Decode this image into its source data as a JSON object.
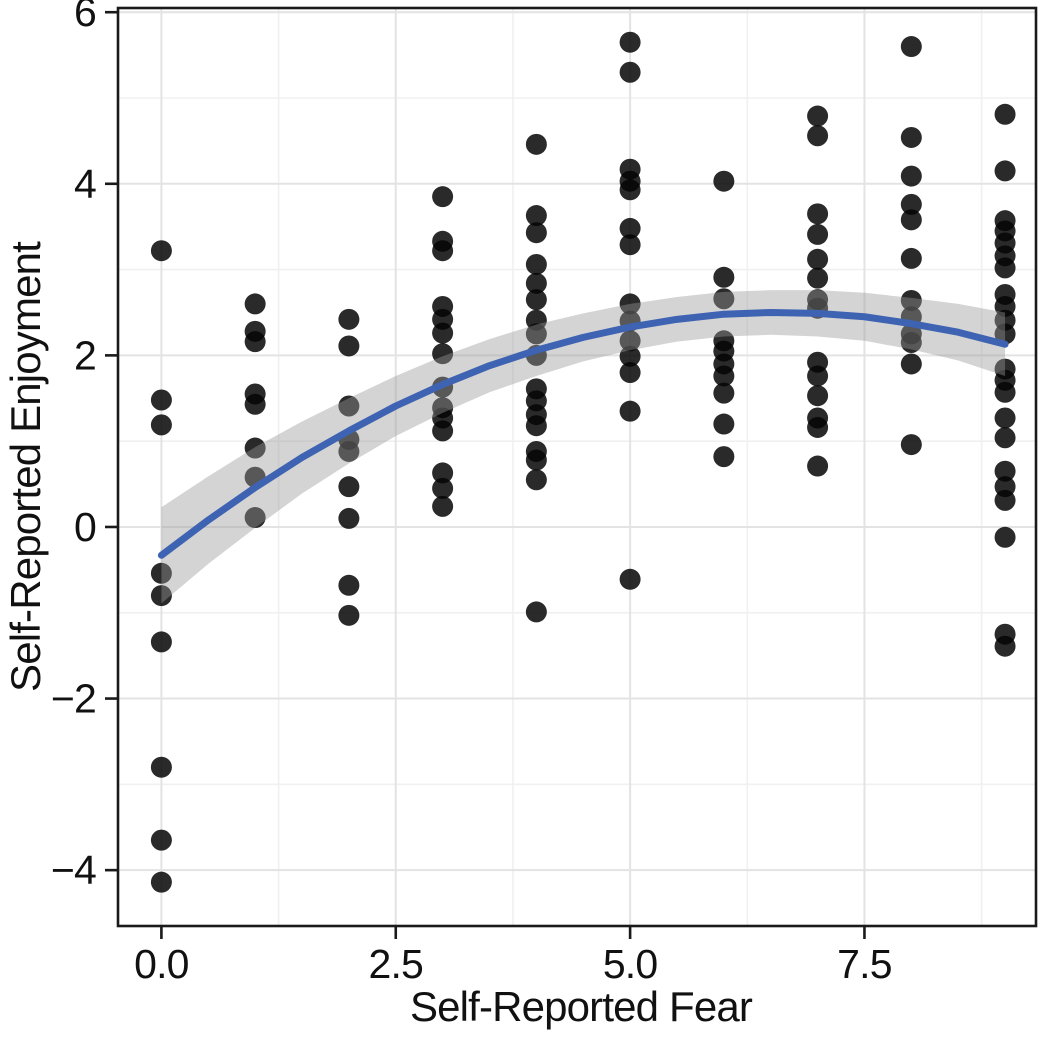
{
  "chart_data": {
    "type": "scatter",
    "title": "",
    "xlabel": "Self-Reported Fear",
    "ylabel": "Self-Reported Enjoyment",
    "legend": "none",
    "grid": "major and minor, light gray on white panel with black border",
    "x_domain": [
      -0.463,
      9.33
    ],
    "y_domain": [
      -4.651,
      6.049
    ],
    "x_ticks": {
      "values": [
        0,
        2.5,
        5,
        7.5
      ],
      "labels": [
        "0.0",
        "2.5",
        "5.0",
        "7.5"
      ]
    },
    "y_ticks": {
      "values": [
        6,
        4,
        2,
        0,
        -2,
        -4
      ],
      "labels": [
        "6",
        "4",
        "2",
        "0",
        "−2",
        "−4"
      ]
    },
    "x_minor_gridlines": [
      1.25,
      3.75,
      6.25,
      8.75
    ],
    "y_minor_gridlines": [
      5,
      3,
      1,
      -1,
      -3
    ],
    "points": [
      [
        0,
        3.22
      ],
      [
        0,
        1.48
      ],
      [
        0,
        1.19
      ],
      [
        0,
        -0.54
      ],
      [
        0,
        -0.8
      ],
      [
        0,
        -1.34
      ],
      [
        0,
        -2.8
      ],
      [
        0,
        -3.65
      ],
      [
        0,
        -4.14
      ],
      [
        1,
        2.6
      ],
      [
        1,
        2.28
      ],
      [
        1,
        2.16
      ],
      [
        1,
        1.55
      ],
      [
        1,
        1.43
      ],
      [
        1,
        0.92
      ],
      [
        1,
        0.58
      ],
      [
        1,
        0.11
      ],
      [
        2,
        2.42
      ],
      [
        2,
        2.11
      ],
      [
        2,
        1.41
      ],
      [
        2,
        1.02
      ],
      [
        2,
        0.88
      ],
      [
        2,
        0.47
      ],
      [
        2,
        0.1
      ],
      [
        2,
        -0.68
      ],
      [
        2,
        -1.03
      ],
      [
        3,
        3.85
      ],
      [
        3,
        3.33
      ],
      [
        3,
        3.22
      ],
      [
        3,
        2.57
      ],
      [
        3,
        2.42
      ],
      [
        3,
        2.26
      ],
      [
        3,
        2.02
      ],
      [
        3,
        1.63
      ],
      [
        3,
        1.39
      ],
      [
        3,
        1.27
      ],
      [
        3,
        1.12
      ],
      [
        3,
        0.63
      ],
      [
        3,
        0.45
      ],
      [
        3,
        0.24
      ],
      [
        4,
        4.46
      ],
      [
        4,
        3.63
      ],
      [
        4,
        3.43
      ],
      [
        4,
        3.06
      ],
      [
        4,
        2.84
      ],
      [
        4,
        2.65
      ],
      [
        4,
        2.41
      ],
      [
        4,
        2.25
      ],
      [
        4,
        2.0
      ],
      [
        4,
        1.61
      ],
      [
        4,
        1.47
      ],
      [
        4,
        1.31
      ],
      [
        4,
        1.18
      ],
      [
        4,
        0.88
      ],
      [
        4,
        0.78
      ],
      [
        4,
        0.55
      ],
      [
        4,
        -0.99
      ],
      [
        5,
        5.65
      ],
      [
        5,
        5.3
      ],
      [
        5,
        4.17
      ],
      [
        5,
        4.03
      ],
      [
        5,
        3.93
      ],
      [
        5,
        3.48
      ],
      [
        5,
        3.29
      ],
      [
        5,
        2.6
      ],
      [
        5,
        2.4
      ],
      [
        5,
        2.17
      ],
      [
        5,
        1.99
      ],
      [
        5,
        1.8
      ],
      [
        5,
        1.35
      ],
      [
        5,
        -0.61
      ],
      [
        6,
        4.03
      ],
      [
        6,
        2.91
      ],
      [
        6,
        2.66
      ],
      [
        6,
        2.17
      ],
      [
        6,
        2.05
      ],
      [
        6,
        1.9
      ],
      [
        6,
        1.76
      ],
      [
        6,
        1.56
      ],
      [
        6,
        1.2
      ],
      [
        6,
        0.82
      ],
      [
        7,
        4.79
      ],
      [
        7,
        4.56
      ],
      [
        7,
        3.65
      ],
      [
        7,
        3.41
      ],
      [
        7,
        3.12
      ],
      [
        7,
        2.9
      ],
      [
        7,
        2.65
      ],
      [
        7,
        2.55
      ],
      [
        7,
        1.92
      ],
      [
        7,
        1.76
      ],
      [
        7,
        1.53
      ],
      [
        7,
        1.27
      ],
      [
        7,
        1.16
      ],
      [
        7,
        0.71
      ],
      [
        8,
        5.6
      ],
      [
        8,
        4.54
      ],
      [
        8,
        4.09
      ],
      [
        8,
        3.76
      ],
      [
        8,
        3.58
      ],
      [
        8,
        3.13
      ],
      [
        8,
        2.64
      ],
      [
        8,
        2.45
      ],
      [
        8,
        2.25
      ],
      [
        8,
        2.15
      ],
      [
        8,
        1.9
      ],
      [
        8,
        0.96
      ],
      [
        9,
        4.81
      ],
      [
        9,
        4.15
      ],
      [
        9,
        3.57
      ],
      [
        9,
        3.45
      ],
      [
        9,
        3.31
      ],
      [
        9,
        3.16
      ],
      [
        9,
        3.02
      ],
      [
        9,
        2.71
      ],
      [
        9,
        2.57
      ],
      [
        9,
        2.41
      ],
      [
        9,
        2.25
      ],
      [
        9,
        1.84
      ],
      [
        9,
        1.71
      ],
      [
        9,
        1.57
      ],
      [
        9,
        1.27
      ],
      [
        9,
        1.04
      ],
      [
        9,
        0.65
      ],
      [
        9,
        0.47
      ],
      [
        9,
        0.31
      ],
      [
        9,
        -0.12
      ],
      [
        9,
        -1.25
      ],
      [
        9,
        -1.39
      ]
    ],
    "smooth_line": {
      "description": "quadratic loess-style fit with confidence band, peak ~2.5 at x~6.6",
      "x": [
        0,
        0.5,
        1,
        1.5,
        2,
        2.5,
        3,
        3.5,
        4,
        4.5,
        5,
        5.5,
        6,
        6.5,
        7,
        7.5,
        8,
        8.5,
        9
      ],
      "y": [
        -0.33,
        0.08,
        0.46,
        0.81,
        1.12,
        1.41,
        1.66,
        1.88,
        2.06,
        2.21,
        2.33,
        2.42,
        2.48,
        2.5,
        2.49,
        2.45,
        2.37,
        2.27,
        2.13
      ],
      "ci_lower": [
        -0.89,
        -0.43,
        -0.01,
        0.39,
        0.74,
        1.06,
        1.33,
        1.57,
        1.76,
        1.93,
        2.06,
        2.16,
        2.22,
        2.24,
        2.22,
        2.17,
        2.07,
        1.94,
        1.76
      ],
      "ci_upper": [
        0.23,
        0.59,
        0.93,
        1.23,
        1.5,
        1.76,
        1.99,
        2.19,
        2.36,
        2.49,
        2.6,
        2.68,
        2.74,
        2.76,
        2.76,
        2.73,
        2.67,
        2.6,
        2.5
      ]
    },
    "colors": {
      "point": "#050505",
      "point_opacity": 0.85,
      "line": "#3E63B2",
      "band": "#999999",
      "band_opacity": 0.42,
      "grid_major": "#E3E3E3",
      "grid_minor": "#F0F0F0",
      "panel_border": "#1A1A1A",
      "text": "#111111",
      "background": "#FFFFFF"
    }
  }
}
